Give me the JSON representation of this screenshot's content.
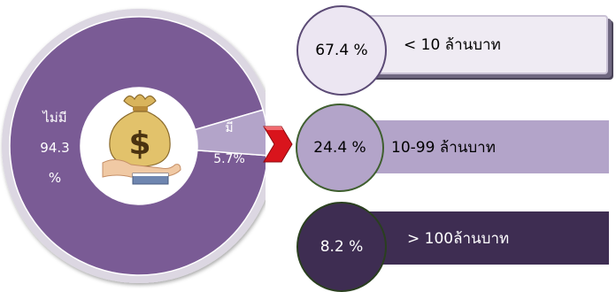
{
  "colors": {
    "donut_main": "#7a5b95",
    "donut_small": "#b3a4c9",
    "donut_rim": "#dcd7e2",
    "pointer": "#d9141c",
    "row1": "#efebf3",
    "row2": "#b3a4c9",
    "row3": "#3e2d52"
  },
  "icon": "money-bag-in-hand-icon",
  "chart_data": [
    {
      "type": "pie",
      "slices": [
        {
          "label": "ไม่มี",
          "value": 94.3,
          "display": "94.3",
          "unit": "%"
        },
        {
          "label": "มี",
          "value": 5.7,
          "display": "5.7%"
        }
      ]
    },
    {
      "type": "table",
      "rows": [
        {
          "percent": "67.4 %",
          "value": 67.4,
          "label": "< 10 ล้านบาท"
        },
        {
          "percent": "24.4 %",
          "value": 24.4,
          "label": "10-99 ล้านบาท"
        },
        {
          "percent": "8.2 %",
          "value": 8.2,
          "label": "> 100ล้านบาท"
        }
      ]
    }
  ]
}
